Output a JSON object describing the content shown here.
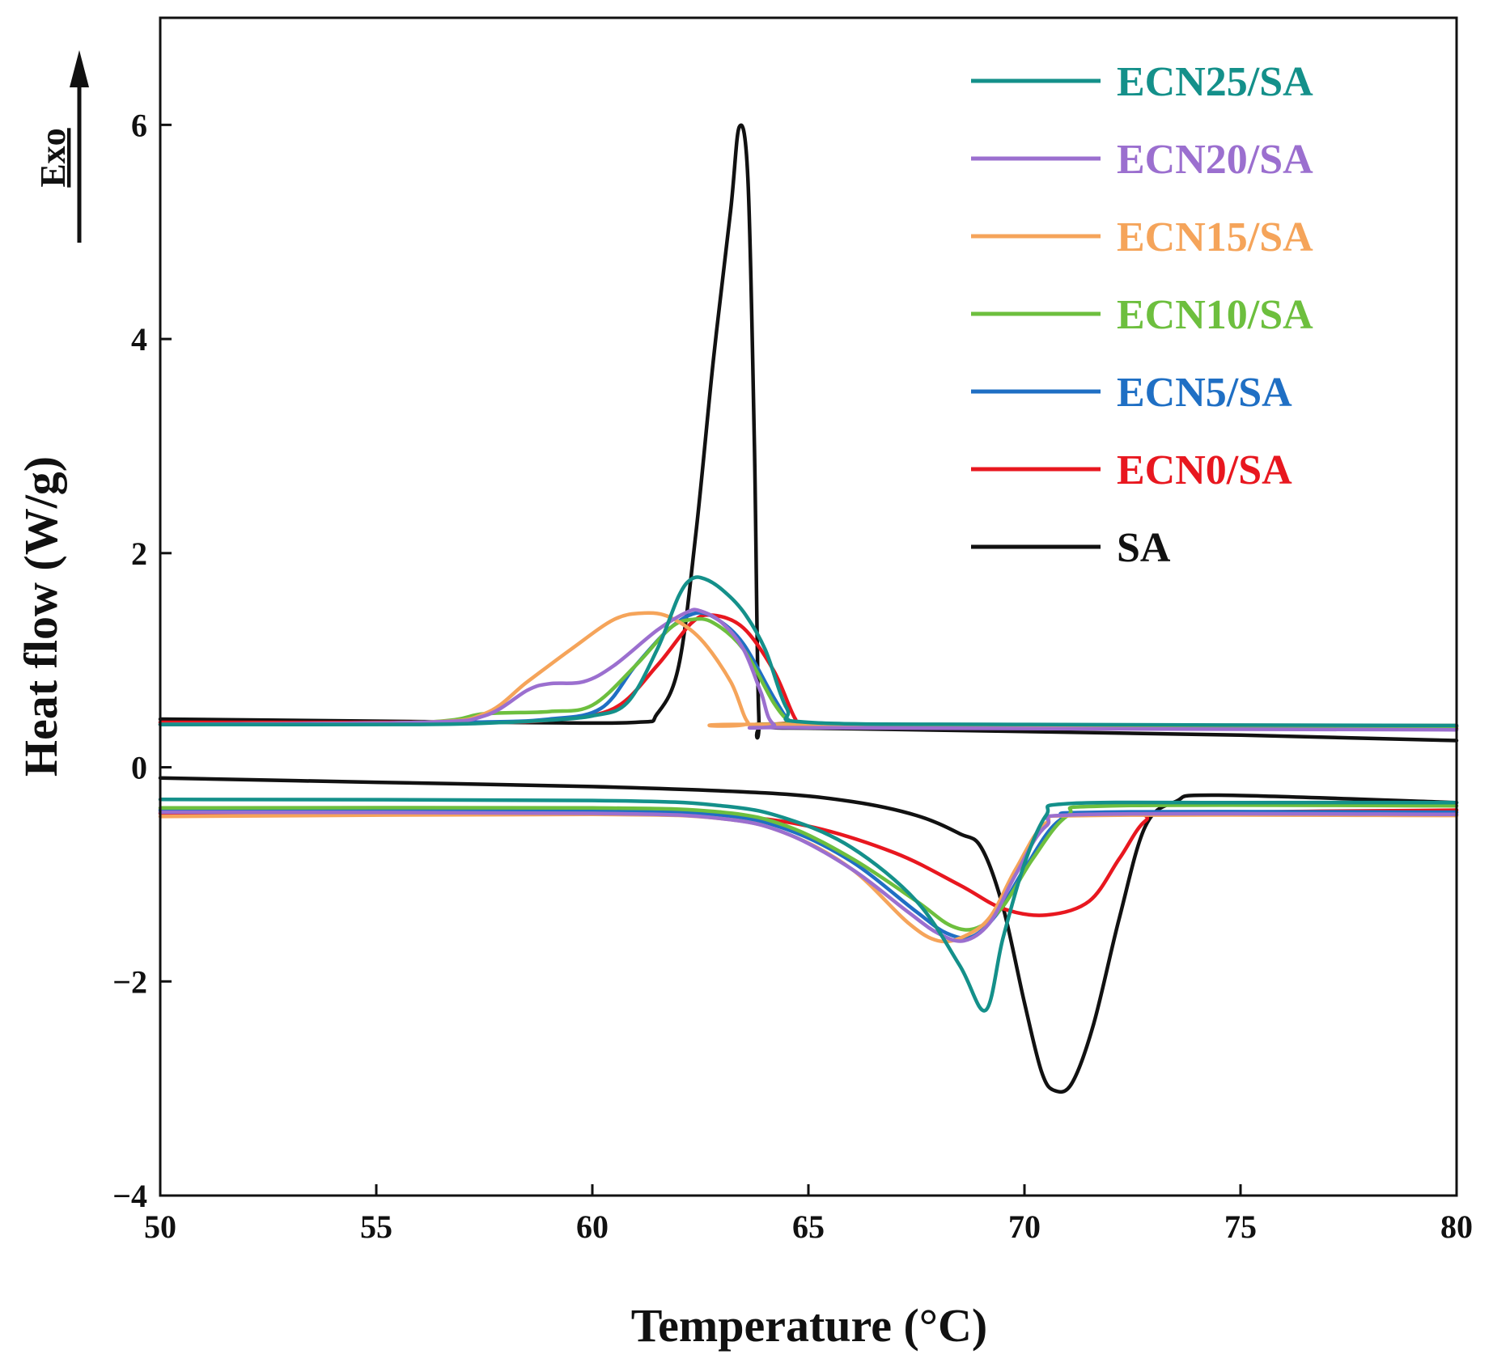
{
  "chart_data": {
    "type": "line",
    "title": "",
    "xlabel": "Temperature (°C)",
    "ylabel": "Heat flow (W/g)",
    "xlim": [
      50,
      80
    ],
    "ylim": [
      -4,
      7
    ],
    "xticks": [
      50,
      55,
      60,
      65,
      70,
      75,
      80
    ],
    "yticks": [
      -4,
      -2,
      0,
      2,
      4,
      6
    ],
    "ytick_labels": [
      "−4",
      "−2",
      "0",
      "2",
      "4",
      "6"
    ],
    "exo_label": "Exo",
    "legend_position": "top-right",
    "series": [
      {
        "name": "ECN25/SA",
        "color": "#14908a",
        "cooling": [
          [
            50,
            0.4
          ],
          [
            56,
            0.4
          ],
          [
            58,
            0.42
          ],
          [
            59,
            0.44
          ],
          [
            60,
            0.48
          ],
          [
            60.8,
            0.6
          ],
          [
            61.5,
            1.1
          ],
          [
            62,
            1.6
          ],
          [
            62.3,
            1.76
          ],
          [
            62.6,
            1.76
          ],
          [
            63,
            1.66
          ],
          [
            63.5,
            1.45
          ],
          [
            64,
            1.1
          ],
          [
            64.5,
            0.55
          ],
          [
            65,
            0.42
          ],
          [
            70,
            0.4
          ],
          [
            80,
            0.39
          ]
        ],
        "heating": [
          [
            50,
            -0.3
          ],
          [
            60,
            -0.31
          ],
          [
            63,
            -0.36
          ],
          [
            64.5,
            -0.48
          ],
          [
            66,
            -0.75
          ],
          [
            67.5,
            -1.25
          ],
          [
            68.5,
            -1.85
          ],
          [
            69.1,
            -2.27
          ],
          [
            69.5,
            -1.6
          ],
          [
            70,
            -0.9
          ],
          [
            70.5,
            -0.45
          ],
          [
            71,
            -0.34
          ],
          [
            75,
            -0.33
          ],
          [
            80,
            -0.33
          ]
        ]
      },
      {
        "name": "ECN20/SA",
        "color": "#9b6fcf",
        "cooling": [
          [
            50,
            0.4
          ],
          [
            56,
            0.42
          ],
          [
            57.5,
            0.48
          ],
          [
            58.5,
            0.72
          ],
          [
            59,
            0.78
          ],
          [
            59.8,
            0.8
          ],
          [
            60.5,
            0.95
          ],
          [
            61.5,
            1.28
          ],
          [
            62.2,
            1.45
          ],
          [
            62.5,
            1.46
          ],
          [
            63,
            1.35
          ],
          [
            63.5,
            1.1
          ],
          [
            63.9,
            0.7
          ],
          [
            64.2,
            0.4
          ],
          [
            65,
            0.37
          ],
          [
            80,
            0.35
          ]
        ],
        "heating": [
          [
            50,
            -0.42
          ],
          [
            60,
            -0.43
          ],
          [
            63,
            -0.48
          ],
          [
            64.5,
            -0.62
          ],
          [
            66,
            -0.95
          ],
          [
            67.3,
            -1.35
          ],
          [
            68,
            -1.55
          ],
          [
            68.6,
            -1.62
          ],
          [
            69.2,
            -1.45
          ],
          [
            69.8,
            -1.0
          ],
          [
            70.5,
            -0.55
          ],
          [
            71.5,
            -0.44
          ],
          [
            80,
            -0.44
          ]
        ]
      },
      {
        "name": "ECN15/SA",
        "color": "#f5a45a",
        "cooling": [
          [
            50,
            0.4
          ],
          [
            56,
            0.42
          ],
          [
            57.5,
            0.5
          ],
          [
            58.5,
            0.8
          ],
          [
            59.5,
            1.1
          ],
          [
            60.5,
            1.38
          ],
          [
            61.2,
            1.44
          ],
          [
            61.8,
            1.4
          ],
          [
            62.5,
            1.2
          ],
          [
            63.2,
            0.8
          ],
          [
            63.6,
            0.42
          ],
          [
            64,
            0.4
          ],
          [
            80,
            0.39
          ]
        ],
        "heating": [
          [
            50,
            -0.46
          ],
          [
            60,
            -0.44
          ],
          [
            63,
            -0.48
          ],
          [
            64.5,
            -0.62
          ],
          [
            66,
            -0.95
          ],
          [
            67.3,
            -1.45
          ],
          [
            68,
            -1.62
          ],
          [
            68.6,
            -1.58
          ],
          [
            69.2,
            -1.4
          ],
          [
            69.8,
            -0.95
          ],
          [
            70.5,
            -0.52
          ],
          [
            71.5,
            -0.45
          ],
          [
            80,
            -0.45
          ]
        ]
      },
      {
        "name": "ECN10/SA",
        "color": "#6dbf3e",
        "cooling": [
          [
            50,
            0.4
          ],
          [
            56,
            0.42
          ],
          [
            57.5,
            0.5
          ],
          [
            59,
            0.52
          ],
          [
            60,
            0.58
          ],
          [
            61,
            0.95
          ],
          [
            61.8,
            1.3
          ],
          [
            62.3,
            1.38
          ],
          [
            62.8,
            1.35
          ],
          [
            63.5,
            1.1
          ],
          [
            64.2,
            0.6
          ],
          [
            64.6,
            0.42
          ],
          [
            65,
            0.4
          ],
          [
            80,
            0.38
          ]
        ],
        "heating": [
          [
            50,
            -0.38
          ],
          [
            60,
            -0.38
          ],
          [
            63,
            -0.42
          ],
          [
            64.5,
            -0.55
          ],
          [
            66,
            -0.85
          ],
          [
            67.5,
            -1.25
          ],
          [
            68.3,
            -1.48
          ],
          [
            68.9,
            -1.5
          ],
          [
            69.5,
            -1.3
          ],
          [
            70.2,
            -0.85
          ],
          [
            71,
            -0.45
          ],
          [
            72,
            -0.36
          ],
          [
            80,
            -0.36
          ]
        ]
      },
      {
        "name": "ECN5/SA",
        "color": "#1f6fc4",
        "cooling": [
          [
            50,
            0.4
          ],
          [
            57,
            0.42
          ],
          [
            59,
            0.45
          ],
          [
            60.2,
            0.55
          ],
          [
            61,
            0.95
          ],
          [
            61.8,
            1.3
          ],
          [
            62.4,
            1.44
          ],
          [
            62.9,
            1.38
          ],
          [
            63.5,
            1.15
          ],
          [
            64.2,
            0.65
          ],
          [
            64.6,
            0.42
          ],
          [
            65,
            0.4
          ],
          [
            80,
            0.38
          ]
        ],
        "heating": [
          [
            50,
            -0.4
          ],
          [
            60,
            -0.41
          ],
          [
            63,
            -0.45
          ],
          [
            64.5,
            -0.58
          ],
          [
            66,
            -0.88
          ],
          [
            67.5,
            -1.35
          ],
          [
            68.2,
            -1.55
          ],
          [
            68.8,
            -1.58
          ],
          [
            69.4,
            -1.35
          ],
          [
            70,
            -0.95
          ],
          [
            70.8,
            -0.5
          ],
          [
            71.8,
            -0.42
          ],
          [
            80,
            -0.42
          ]
        ]
      },
      {
        "name": "ECN0/SA",
        "color": "#e8171f",
        "cooling": [
          [
            50,
            0.42
          ],
          [
            57,
            0.42
          ],
          [
            59,
            0.44
          ],
          [
            60.5,
            0.55
          ],
          [
            61.5,
            0.95
          ],
          [
            62.3,
            1.35
          ],
          [
            62.8,
            1.42
          ],
          [
            63.5,
            1.3
          ],
          [
            64.2,
            0.9
          ],
          [
            64.7,
            0.45
          ],
          [
            65,
            0.4
          ],
          [
            80,
            0.36
          ]
        ],
        "heating": [
          [
            50,
            -0.43
          ],
          [
            60,
            -0.42
          ],
          [
            63,
            -0.45
          ],
          [
            65,
            -0.55
          ],
          [
            67,
            -0.8
          ],
          [
            68.5,
            -1.1
          ],
          [
            69.5,
            -1.32
          ],
          [
            70.5,
            -1.38
          ],
          [
            71.5,
            -1.25
          ],
          [
            72.2,
            -0.85
          ],
          [
            72.8,
            -0.5
          ],
          [
            73.5,
            -0.43
          ],
          [
            80,
            -0.4
          ]
        ]
      },
      {
        "name": "SA",
        "color": "#111111",
        "cooling": [
          [
            50,
            0.45
          ],
          [
            58,
            0.42
          ],
          [
            61,
            0.42
          ],
          [
            61.5,
            0.5
          ],
          [
            62,
            0.95
          ],
          [
            62.4,
            2.2
          ],
          [
            62.8,
            3.8
          ],
          [
            63.2,
            5.2
          ],
          [
            63.4,
            5.98
          ],
          [
            63.6,
            5.5
          ],
          [
            63.75,
            3.0
          ],
          [
            63.85,
            0.5
          ],
          [
            64,
            0.38
          ],
          [
            66,
            0.36
          ],
          [
            75,
            0.3
          ],
          [
            80,
            0.25
          ]
        ],
        "heating": [
          [
            50,
            -0.1
          ],
          [
            55,
            -0.14
          ],
          [
            60,
            -0.18
          ],
          [
            64,
            -0.24
          ],
          [
            66,
            -0.32
          ],
          [
            67.5,
            -0.45
          ],
          [
            68.5,
            -0.62
          ],
          [
            69,
            -0.75
          ],
          [
            69.5,
            -1.3
          ],
          [
            70,
            -2.2
          ],
          [
            70.4,
            -2.85
          ],
          [
            70.7,
            -3.02
          ],
          [
            71.1,
            -2.95
          ],
          [
            71.6,
            -2.4
          ],
          [
            72.2,
            -1.4
          ],
          [
            72.8,
            -0.55
          ],
          [
            73.5,
            -0.32
          ],
          [
            74.5,
            -0.26
          ],
          [
            80,
            -0.33
          ]
        ]
      }
    ]
  }
}
